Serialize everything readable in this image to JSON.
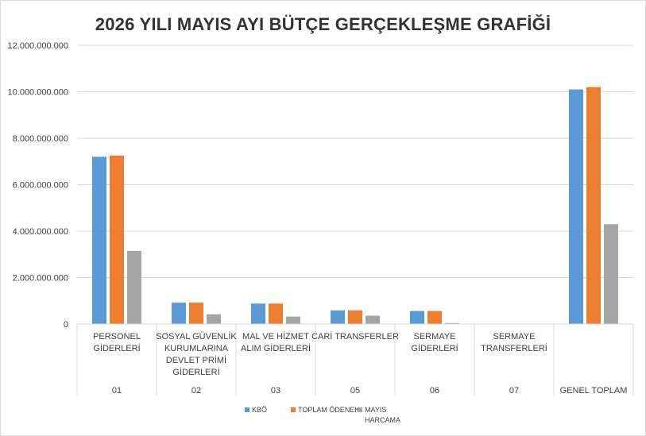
{
  "chart_data": {
    "type": "bar",
    "title": "2026 YILI MAYIS AYI BÜTÇE GERÇEKLEŞME GRAFİĞİ",
    "ylim": [
      0,
      12000000000
    ],
    "ytick_labels": [
      "0",
      "2.000.000.000",
      "4.000.000.000",
      "6.000.000.000",
      "8.000.000.000",
      "10.000.000.000",
      "12.000.000.000"
    ],
    "categories": [
      {
        "label_lines": [
          "PERSONEL",
          "GİDERLERİ"
        ],
        "code": "01"
      },
      {
        "label_lines": [
          "SOSYAL GÜVENLİK",
          "KURUMLARINA",
          "DEVLET PRİMİ",
          "GİDERLERİ"
        ],
        "code": "02"
      },
      {
        "label_lines": [
          "MAL VE HİZMET",
          "ALIM GİDERLERİ"
        ],
        "code": "03"
      },
      {
        "label_lines": [
          "CARİ TRANSFERLER"
        ],
        "code": "05"
      },
      {
        "label_lines": [
          "SERMAYE",
          "GİDERLERİ"
        ],
        "code": "06"
      },
      {
        "label_lines": [
          "SERMAYE",
          "TRANSFERLERİ"
        ],
        "code": "07"
      },
      {
        "label_lines": [],
        "code": "GENEL TOPLAM"
      }
    ],
    "series": [
      {
        "name": "KBÖ",
        "color": "#5b9bd5",
        "values": [
          7200000000,
          920000000,
          880000000,
          590000000,
          560000000,
          0,
          10100000000
        ]
      },
      {
        "name": "TOPLAM ÖDENEK",
        "color": "#ed7d31",
        "values": [
          7250000000,
          920000000,
          880000000,
          590000000,
          560000000,
          0,
          10200000000
        ]
      },
      {
        "name": "MAYIS HARCAMA",
        "name_lines": [
          "MAYIS",
          "HARCAMA"
        ],
        "color": "#a5a5a5",
        "values": [
          3150000000,
          420000000,
          320000000,
          360000000,
          40000000,
          0,
          4300000000
        ]
      }
    ],
    "grid": true,
    "legend": "bottom"
  }
}
